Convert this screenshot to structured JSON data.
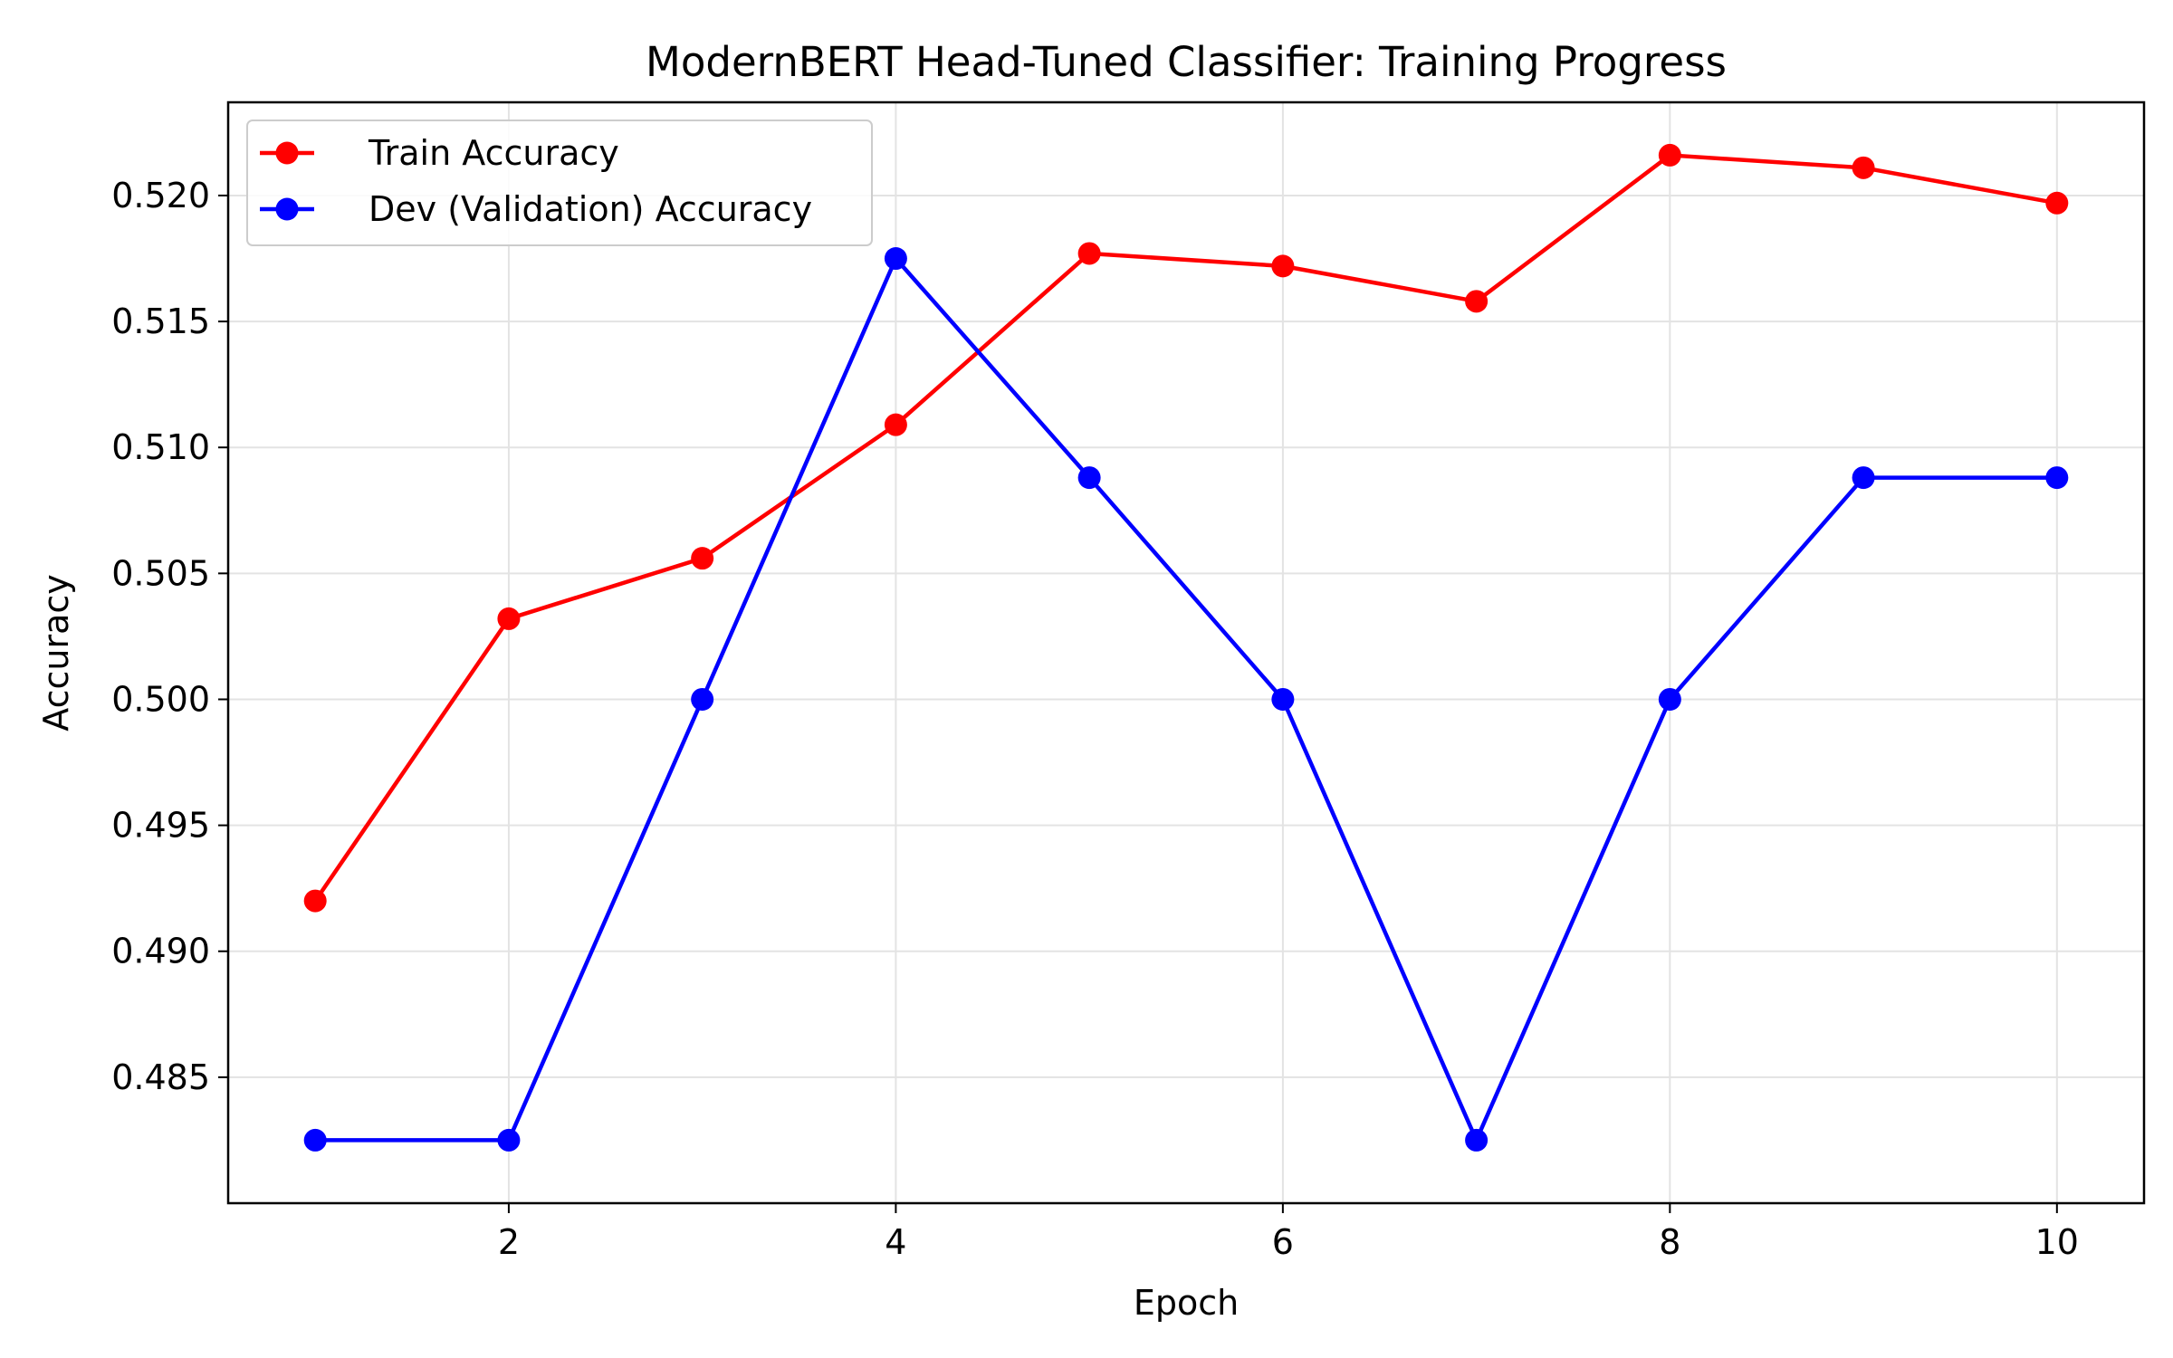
{
  "chart_data": {
    "type": "line",
    "title": "ModernBERT Head-Tuned Classifier: Training Progress",
    "xlabel": "Epoch",
    "ylabel": "Accuracy",
    "xlim": [
      0.55,
      10.45
    ],
    "ylim": [
      0.48,
      0.5237
    ],
    "xticks": [
      2,
      4,
      6,
      8,
      10
    ],
    "xtick_labels": [
      "2",
      "4",
      "6",
      "8",
      "10"
    ],
    "yticks": [
      0.485,
      0.49,
      0.495,
      0.5,
      0.505,
      0.51,
      0.515,
      0.52
    ],
    "ytick_labels": [
      "0.485",
      "0.490",
      "0.495",
      "0.500",
      "0.505",
      "0.510",
      "0.515",
      "0.520"
    ],
    "grid": true,
    "legend_position": "top-left",
    "x": [
      1,
      2,
      3,
      4,
      5,
      6,
      7,
      8,
      9,
      10
    ],
    "series": [
      {
        "name": "Train Accuracy",
        "color": "#ff0000",
        "marker": "circle",
        "values": [
          0.492,
          0.5032,
          0.5056,
          0.5109,
          0.5177,
          0.5172,
          0.5158,
          0.5216,
          0.5211,
          0.5197
        ]
      },
      {
        "name": "Dev (Validation) Accuracy",
        "color": "#0000ff",
        "marker": "circle",
        "values": [
          0.4825,
          0.4825,
          0.5,
          0.5175,
          0.5088,
          0.5,
          0.4825,
          0.5,
          0.5088,
          0.5088
        ]
      }
    ]
  }
}
